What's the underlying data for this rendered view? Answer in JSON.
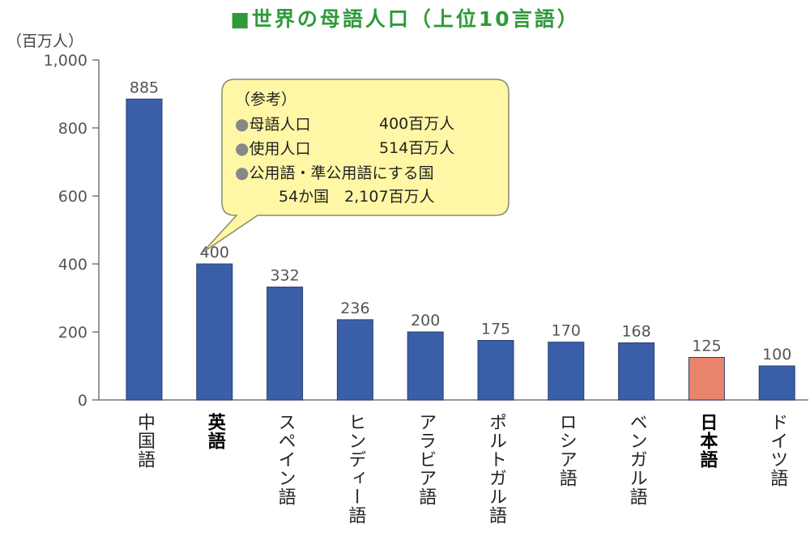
{
  "title": "■世界の母語人口（上位10言語）",
  "unit": "（百万人）",
  "chart_data": {
    "type": "bar",
    "title": "世界の母語人口（上位10言語）",
    "ylabel": "（百万人）",
    "ylim": [
      0,
      1000
    ],
    "yticks": [
      "0",
      "200",
      "400",
      "600",
      "800",
      "1,000"
    ],
    "categories": [
      "中国語",
      "英語",
      "スペイン語",
      "ヒンディー語",
      "アラビア語",
      "ポルトガル語",
      "ロシア語",
      "ベンガル語",
      "日本語",
      "ドイツ語"
    ],
    "values": [
      885,
      400,
      332,
      236,
      200,
      175,
      170,
      168,
      125,
      100
    ],
    "value_labels": [
      "885",
      "400",
      "332",
      "236",
      "200",
      "175",
      "170",
      "168",
      "125",
      "100"
    ],
    "bar_color": "#3a5fa8",
    "highlight_color": "#e8846a",
    "highlight_index": 8,
    "bold_indices": [
      1,
      8
    ],
    "grid": false,
    "legend": "none"
  },
  "callout": {
    "header": "（参考）",
    "bullet": "●",
    "items": [
      {
        "label": "母語人口",
        "value": "400百万人"
      },
      {
        "label": "使用人口",
        "value": "514百万人"
      },
      {
        "label": "公用語・準公用語にする国",
        "value": ""
      }
    ],
    "last_line": "54か国　2,107百万人",
    "fill": "#fff7a6",
    "stroke": "#8a8a6a"
  }
}
